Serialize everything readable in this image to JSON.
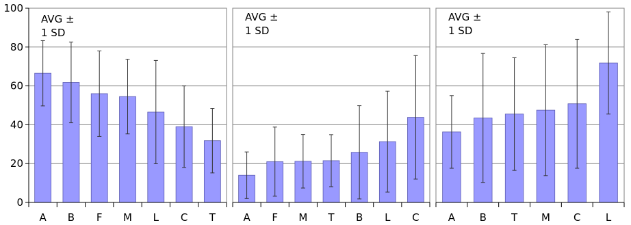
{
  "chart_data": [
    {
      "type": "bar",
      "annotation": [
        "AVG ±",
        "1 SD"
      ],
      "categories": [
        "A",
        "B",
        "F",
        "M",
        "L",
        "C",
        "T"
      ],
      "values": [
        66.5,
        61.8,
        56.0,
        54.5,
        46.5,
        39.0,
        31.8
      ],
      "error": [
        16.8,
        20.8,
        22.0,
        19.2,
        26.6,
        21.0,
        16.6
      ],
      "ylim": [
        0,
        100
      ],
      "yticks": [
        0,
        20,
        40,
        60,
        80,
        100
      ],
      "grid": true
    },
    {
      "type": "bar",
      "annotation": [
        "AVG ±",
        "1 SD"
      ],
      "categories": [
        "A",
        "F",
        "M",
        "T",
        "B",
        "L",
        "C"
      ],
      "values": [
        14.0,
        21.0,
        21.2,
        21.5,
        25.8,
        31.3,
        43.8
      ],
      "error": [
        12.0,
        17.8,
        13.8,
        13.4,
        24.0,
        26.0,
        31.8
      ],
      "ylim": [
        0,
        100
      ],
      "yticks": [
        0,
        20,
        40,
        60,
        80,
        100
      ],
      "grid": true
    },
    {
      "type": "bar",
      "annotation": [
        "AVG ±",
        "1 SD"
      ],
      "categories": [
        "A",
        "B",
        "T",
        "M",
        "C",
        "L"
      ],
      "values": [
        36.3,
        43.5,
        45.5,
        47.5,
        50.8,
        71.8
      ],
      "error": [
        18.7,
        33.2,
        29.0,
        33.7,
        33.2,
        26.3
      ],
      "ylim": [
        0,
        100
      ],
      "yticks": [
        0,
        20,
        40,
        60,
        80,
        100
      ],
      "grid": true
    }
  ],
  "colors": {
    "bar_fill": "#9999ff",
    "bar_stroke": "#5b5bb0",
    "grid": "#808080",
    "frame": "#808080",
    "error_bar": "#333333",
    "axis": "#000000"
  }
}
